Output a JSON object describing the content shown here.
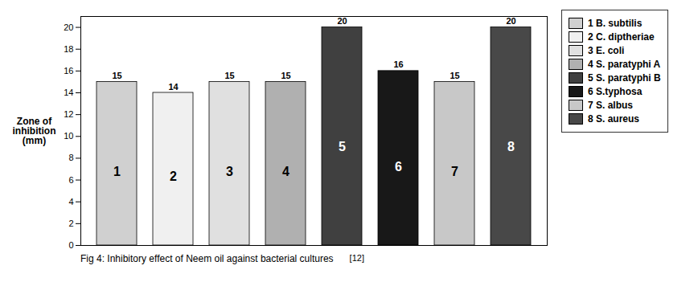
{
  "chart_data": {
    "type": "bar",
    "categories": [
      "1",
      "2",
      "3",
      "4",
      "5",
      "6",
      "7",
      "8"
    ],
    "values": [
      15,
      14,
      15,
      15,
      20,
      16,
      15,
      20
    ],
    "colors": [
      "#d0d0d0",
      "#f0f0f0",
      "#e0e0e0",
      "#b0b0b0",
      "#404040",
      "#181818",
      "#c8c8c8",
      "#484848"
    ],
    "legend_labels": [
      "1 B. subtilis",
      "2 C. diptheriae",
      "3 E. coli",
      "4 S. paratyphi A",
      "5 S. paratyphi B",
      "6 S.typhosa",
      "7 S. albus",
      "8 S. aureus"
    ],
    "legend": "right",
    "ylabel": "Zone of\ninhibition\n(mm)",
    "ylim": [
      0,
      21
    ],
    "yticks": [
      0,
      2,
      4,
      6,
      8,
      10,
      12,
      14,
      16,
      18,
      20
    ],
    "data_labels": true,
    "tick_labels": "y",
    "caption": "Fig 4: Inhibitory effect of Neem oil against bacterial cultures ",
    "citation": "[12]"
  }
}
